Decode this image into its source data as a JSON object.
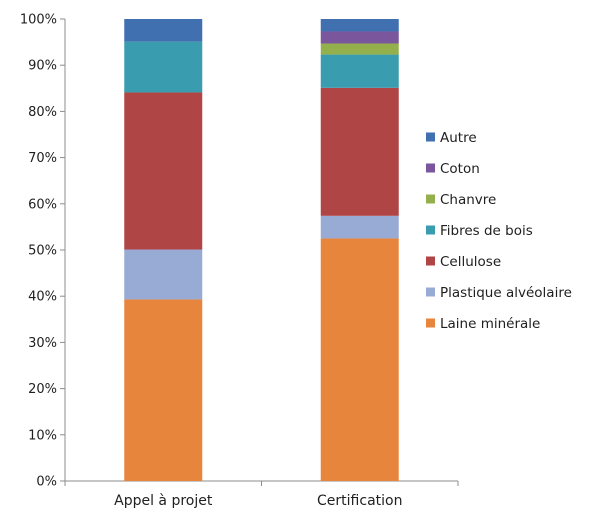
{
  "chart_data": {
    "type": "bar",
    "stacked": true,
    "normalized": true,
    "title": "",
    "xlabel": "",
    "ylabel": "",
    "ylim": [
      0,
      100
    ],
    "ytick_values": [
      0,
      10,
      20,
      30,
      40,
      50,
      60,
      70,
      80,
      90,
      100
    ],
    "ytick_labels": [
      "0%",
      "10%",
      "20%",
      "30%",
      "40%",
      "50%",
      "60%",
      "70%",
      "80%",
      "90%",
      "100%"
    ],
    "categories": [
      "Appel à projet",
      "Certification"
    ],
    "series": [
      {
        "name": "Laine minérale",
        "color": "#E8853D",
        "values": [
          39.3,
          52.5
        ]
      },
      {
        "name": "Plastique alvéolaire",
        "color": "#98ABD5",
        "values": [
          10.8,
          4.9
        ]
      },
      {
        "name": "Cellulose",
        "color": "#B04545",
        "values": [
          34.0,
          27.7
        ]
      },
      {
        "name": "Fibres de bois",
        "color": "#3A9DAF",
        "values": [
          11.0,
          7.2
        ]
      },
      {
        "name": "Chanvre",
        "color": "#93B04C",
        "values": [
          0,
          2.4
        ]
      },
      {
        "name": "Coton",
        "color": "#7A569C",
        "values": [
          0,
          2.6
        ]
      },
      {
        "name": "Autre",
        "color": "#4170B0",
        "values": [
          4.9,
          2.7
        ]
      }
    ],
    "legend_order": [
      "Autre",
      "Coton",
      "Chanvre",
      "Fibres de bois",
      "Cellulose",
      "Plastique alvéolaire",
      "Laine minérale"
    ],
    "legend_position": "right",
    "grid": false
  }
}
